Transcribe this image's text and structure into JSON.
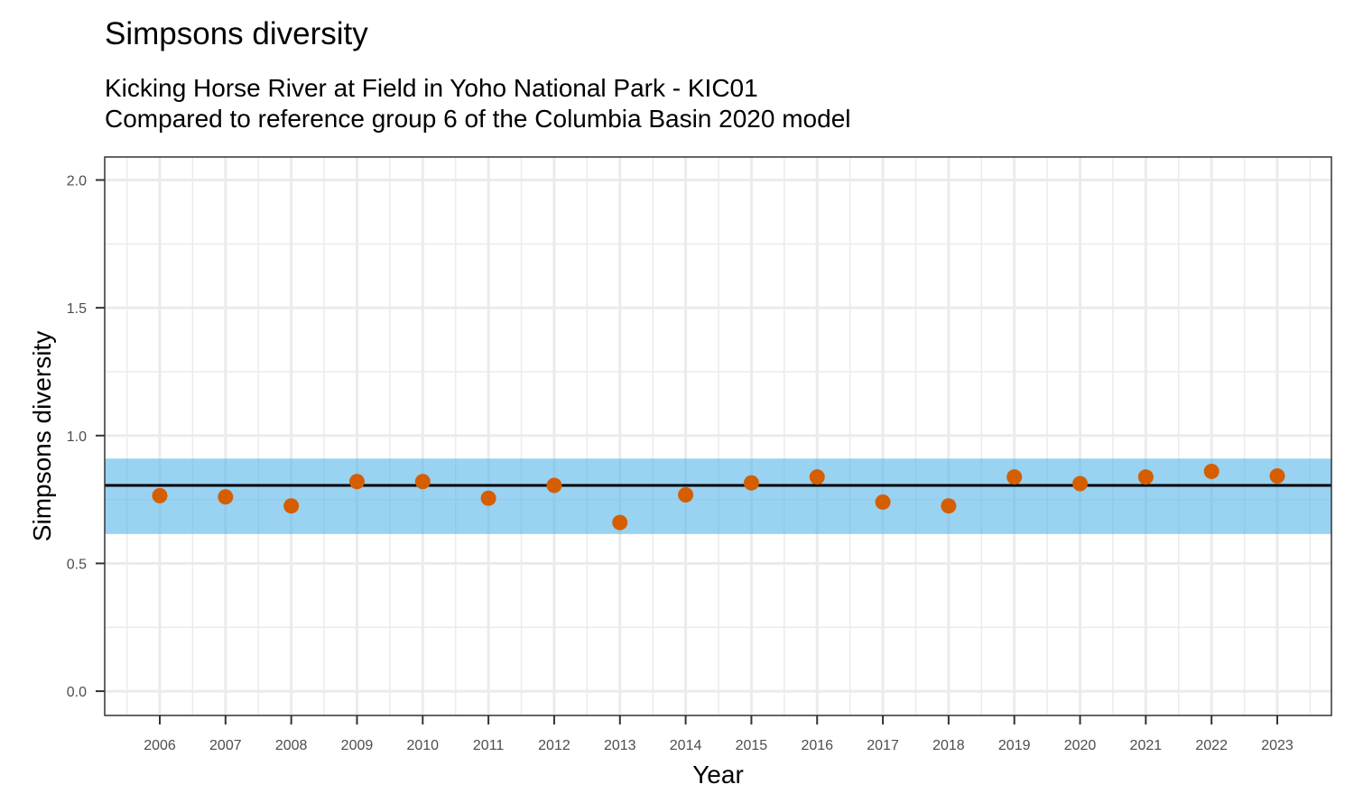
{
  "chart_data": {
    "type": "scatter",
    "title": "Simpsons diversity",
    "subtitle_line1": "Kicking Horse River at Field in Yoho National Park - KIC01",
    "subtitle_line2": "Compared to reference group 6 of the Columbia Basin 2020 model",
    "xlabel": "Year",
    "ylabel": "Simpsons diversity",
    "x": [
      "2006",
      "2007",
      "2008",
      "2009",
      "2010",
      "2011",
      "2012",
      "2013",
      "2014",
      "2015",
      "2016",
      "2017",
      "2018",
      "2019",
      "2020",
      "2021",
      "2022",
      "2023"
    ],
    "values": [
      0.765,
      0.76,
      0.725,
      0.82,
      0.82,
      0.755,
      0.805,
      0.66,
      0.768,
      0.815,
      0.838,
      0.74,
      0.725,
      0.838,
      0.812,
      0.838,
      0.86,
      0.842
    ],
    "yticks": [
      "0.0",
      "0.5",
      "1.0",
      "1.5",
      "2.0"
    ],
    "ylim": [
      -0.095,
      2.09
    ],
    "reference_mean": 0.805,
    "reference_band": [
      0.615,
      0.91
    ],
    "colors": {
      "point": "#D55E00",
      "band": "#56B4E9",
      "line": "#000000",
      "grid": "#ebebeb"
    }
  }
}
